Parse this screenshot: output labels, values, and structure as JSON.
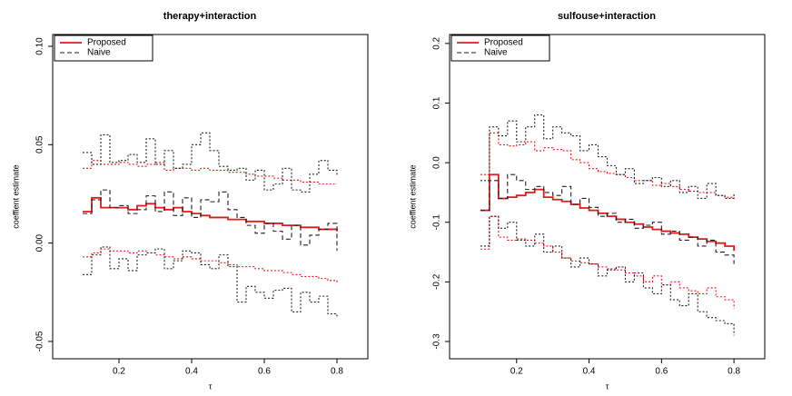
{
  "chart_data": [
    {
      "type": "line",
      "title": "therapy+interaction",
      "xlabel": "τ",
      "ylabel": "coeffient estimate",
      "x": [
        0.1,
        0.125,
        0.15,
        0.175,
        0.2,
        0.225,
        0.25,
        0.275,
        0.3,
        0.325,
        0.35,
        0.375,
        0.4,
        0.425,
        0.45,
        0.475,
        0.5,
        0.525,
        0.55,
        0.575,
        0.6,
        0.625,
        0.65,
        0.675,
        0.7,
        0.725,
        0.75,
        0.775,
        0.8
      ],
      "xlim": [
        0.0175,
        0.885
      ],
      "xticks": [
        0.2,
        0.4,
        0.6,
        0.8
      ],
      "ylim": [
        -0.0588,
        0.106
      ],
      "yticks": [
        {
          "value": 0.1,
          "label": "0.10"
        },
        0.05,
        {
          "value": 0,
          "label": "0.00"
        },
        -0.05
      ],
      "legend": "top-left",
      "series": [
        {
          "name": "Proposed",
          "color": "#e31a1c",
          "line_style": "solid",
          "values": [
            0.016,
            0.023,
            0.018,
            0.018,
            0.018,
            0.017,
            0.019,
            0.02,
            0.018,
            0.017,
            0.018,
            0.016,
            0.015,
            0.014,
            0.013,
            0.013,
            0.012,
            0.012,
            0.011,
            0.011,
            0.01,
            0.01,
            0.009,
            0.009,
            0.008,
            0.008,
            0.007,
            0.007,
            0.006
          ],
          "upper": [
            0.038,
            0.042,
            0.04,
            0.04,
            0.041,
            0.04,
            0.039,
            0.04,
            0.041,
            0.037,
            0.038,
            0.038,
            0.037,
            0.038,
            0.037,
            0.037,
            0.036,
            0.036,
            0.035,
            0.034,
            0.034,
            0.033,
            0.032,
            0.032,
            0.031,
            0.031,
            0.03,
            0.03,
            0.03
          ],
          "lower": [
            -0.007,
            -0.005,
            -0.003,
            -0.004,
            -0.004,
            -0.005,
            -0.004,
            -0.005,
            -0.006,
            -0.007,
            -0.008,
            -0.007,
            -0.008,
            -0.009,
            -0.009,
            -0.01,
            -0.011,
            -0.012,
            -0.012,
            -0.013,
            -0.014,
            -0.014,
            -0.015,
            -0.016,
            -0.017,
            -0.017,
            -0.018,
            -0.019,
            -0.02
          ]
        },
        {
          "name": "Naive",
          "color": "#222222",
          "line_style": "dashed",
          "values": [
            0.015,
            0.022,
            0.027,
            0.018,
            0.019,
            0.015,
            0.017,
            0.024,
            0.016,
            0.026,
            0.014,
            0.023,
            0.013,
            0.022,
            0.021,
            0.026,
            0.017,
            0.013,
            0.009,
            0.005,
            0.01,
            0.006,
            0.002,
            0.009,
            -0.001,
            0.004,
            0.007,
            0.01,
            -0.004
          ],
          "upper": [
            0.046,
            0.04,
            0.055,
            0.041,
            0.042,
            0.045,
            0.041,
            0.053,
            0.04,
            0.047,
            0.038,
            0.04,
            0.05,
            0.056,
            0.047,
            0.039,
            0.037,
            0.038,
            0.032,
            0.037,
            0.027,
            0.03,
            0.038,
            0.027,
            0.026,
            0.035,
            0.042,
            0.037,
            0.034
          ],
          "lower": [
            -0.016,
            -0.006,
            -0.002,
            -0.013,
            -0.008,
            -0.014,
            -0.006,
            -0.005,
            -0.003,
            -0.013,
            -0.009,
            -0.004,
            -0.005,
            -0.011,
            -0.013,
            -0.006,
            -0.012,
            -0.03,
            -0.022,
            -0.025,
            -0.028,
            -0.024,
            -0.023,
            -0.035,
            -0.025,
            -0.03,
            -0.027,
            -0.036,
            -0.038
          ]
        }
      ]
    },
    {
      "type": "line",
      "title": "sulfouse+interaction",
      "xlabel": "τ",
      "ylabel": "coeffient estimate",
      "x": [
        0.1,
        0.125,
        0.15,
        0.175,
        0.2,
        0.225,
        0.25,
        0.275,
        0.3,
        0.325,
        0.35,
        0.375,
        0.4,
        0.425,
        0.45,
        0.475,
        0.5,
        0.525,
        0.55,
        0.575,
        0.6,
        0.625,
        0.65,
        0.675,
        0.7,
        0.725,
        0.75,
        0.775,
        0.8
      ],
      "xlim": [
        0.015,
        0.885
      ],
      "xticks": [
        0.2,
        0.4,
        0.6,
        0.8
      ],
      "ylim": [
        -0.329,
        0.215
      ],
      "yticks": [
        0.2,
        0.1,
        {
          "value": 0,
          "label": "0.0"
        },
        -0.1,
        -0.2,
        -0.3
      ],
      "legend": "top-left",
      "series": [
        {
          "name": "Proposed",
          "color": "#e31a1c",
          "line_style": "solid",
          "values": [
            -0.08,
            -0.02,
            -0.06,
            -0.058,
            -0.055,
            -0.05,
            -0.045,
            -0.058,
            -0.062,
            -0.065,
            -0.07,
            -0.076,
            -0.08,
            -0.085,
            -0.09,
            -0.095,
            -0.1,
            -0.103,
            -0.108,
            -0.112,
            -0.115,
            -0.118,
            -0.12,
            -0.125,
            -0.128,
            -0.132,
            -0.135,
            -0.14,
            -0.148
          ],
          "upper": [
            -0.02,
            0.05,
            0.03,
            0.028,
            0.03,
            0.035,
            0.02,
            0.025,
            0.022,
            0.02,
            0.005,
            0.0,
            -0.01,
            -0.015,
            -0.018,
            -0.02,
            -0.025,
            -0.03,
            -0.03,
            -0.038,
            -0.035,
            -0.04,
            -0.045,
            -0.048,
            -0.05,
            -0.05,
            -0.055,
            -0.058,
            -0.06
          ],
          "lower": [
            -0.145,
            -0.09,
            -0.125,
            -0.13,
            -0.128,
            -0.13,
            -0.135,
            -0.14,
            -0.15,
            -0.16,
            -0.165,
            -0.168,
            -0.17,
            -0.175,
            -0.178,
            -0.18,
            -0.185,
            -0.19,
            -0.2,
            -0.19,
            -0.205,
            -0.2,
            -0.21,
            -0.215,
            -0.22,
            -0.21,
            -0.225,
            -0.23,
            -0.245
          ]
        },
        {
          "name": "Naive",
          "color": "#222222",
          "line_style": "dashed",
          "values": [
            -0.08,
            -0.03,
            -0.06,
            -0.02,
            -0.03,
            -0.045,
            -0.04,
            -0.05,
            -0.055,
            -0.04,
            -0.07,
            -0.06,
            -0.075,
            -0.09,
            -0.085,
            -0.1,
            -0.095,
            -0.11,
            -0.105,
            -0.1,
            -0.12,
            -0.115,
            -0.13,
            -0.125,
            -0.14,
            -0.13,
            -0.15,
            -0.155,
            -0.17
          ],
          "upper": [
            -0.03,
            0.06,
            0.045,
            0.07,
            0.035,
            0.06,
            0.08,
            0.04,
            0.06,
            0.05,
            0.045,
            0.02,
            0.03,
            0.01,
            -0.005,
            -0.02,
            -0.01,
            -0.035,
            -0.03,
            -0.025,
            -0.04,
            -0.03,
            -0.05,
            -0.04,
            -0.06,
            -0.035,
            -0.055,
            -0.06,
            -0.05
          ],
          "lower": [
            -0.14,
            -0.09,
            -0.11,
            -0.1,
            -0.13,
            -0.14,
            -0.12,
            -0.15,
            -0.14,
            -0.16,
            -0.175,
            -0.16,
            -0.17,
            -0.19,
            -0.18,
            -0.175,
            -0.2,
            -0.185,
            -0.21,
            -0.22,
            -0.205,
            -0.23,
            -0.24,
            -0.22,
            -0.25,
            -0.26,
            -0.265,
            -0.27,
            -0.29
          ]
        }
      ]
    }
  ]
}
